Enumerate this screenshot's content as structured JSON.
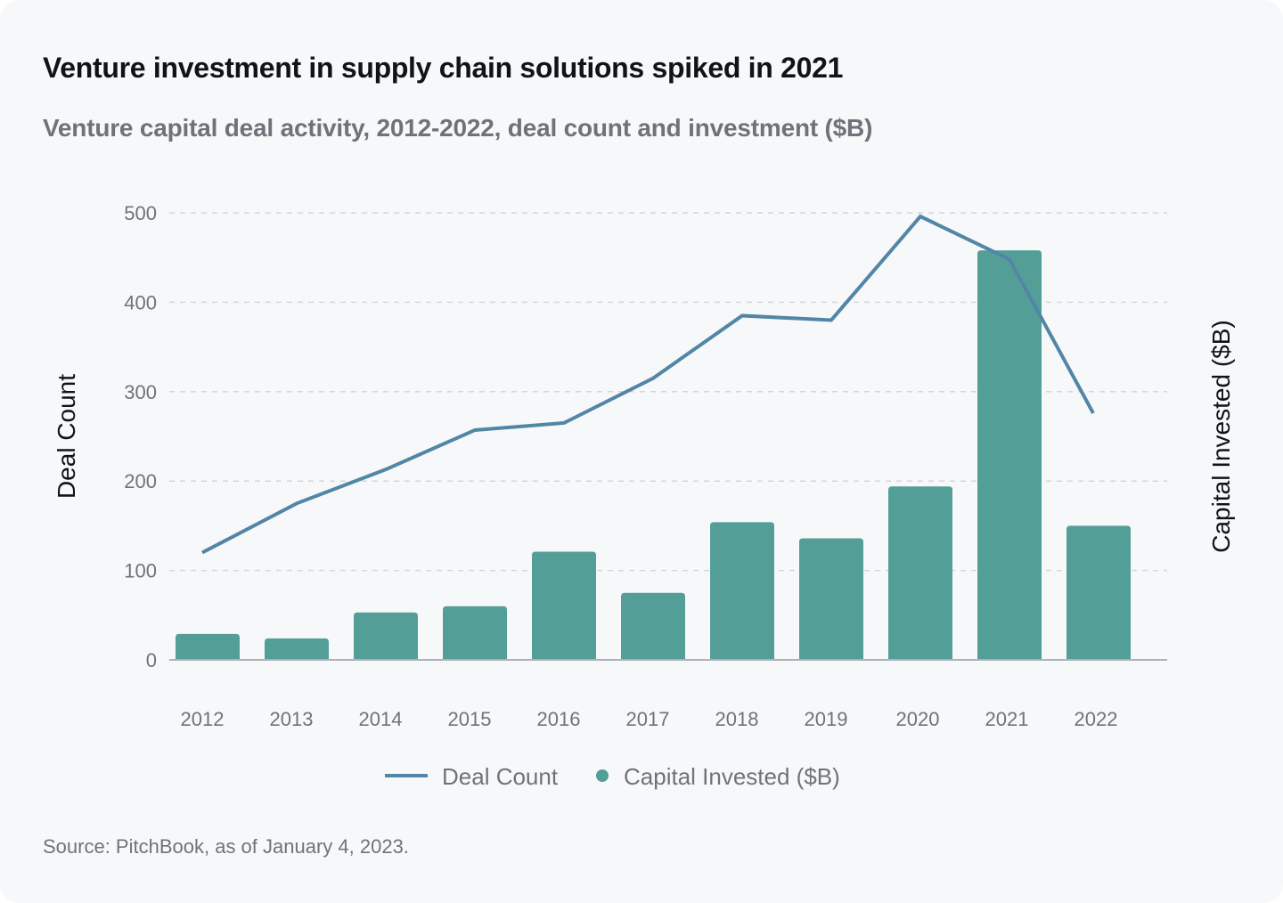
{
  "title": "Venture investment in supply chain solutions spiked in 2021",
  "subtitle": "Venture capital deal activity, 2012-2022, deal count and investment ($B)",
  "source": "Source: PitchBook, as of January 4, 2023.",
  "colors": {
    "line": "#5286a6",
    "bar": "#549e98",
    "grid": "#d3d6db",
    "baseline": "#aeb3ba"
  },
  "chart_data": {
    "type": "bar",
    "title": "Venture investment in supply chain solutions spiked in 2021",
    "subtitle": "Venture capital deal activity, 2012-2022, deal count and investment ($B)",
    "categories": [
      "2012",
      "2013",
      "2014",
      "2015",
      "2016",
      "2017",
      "2018",
      "2019",
      "2020",
      "2021",
      "2022"
    ],
    "series": [
      {
        "name": "Deal Count",
        "type": "line",
        "axis": "left",
        "values": [
          120,
          175,
          213,
          257,
          265,
          315,
          385,
          380,
          496,
          448,
          276
        ]
      },
      {
        "name": "Capital Invested ($B)",
        "type": "bar",
        "axis": "right",
        "values": [
          29,
          24,
          53,
          60,
          121,
          75,
          154,
          136,
          194,
          458,
          150
        ]
      }
    ],
    "ylabel": "Deal Count",
    "y2label": "Capital Invested ($B)",
    "xlabel": "",
    "ylim": [
      0,
      500
    ],
    "yticks": [
      "0",
      "100",
      "200",
      "300",
      "400",
      "500"
    ],
    "grid": true,
    "legend": {
      "position": "bottom-center",
      "entries": [
        "Deal Count",
        "Capital Invested ($B)"
      ]
    }
  }
}
